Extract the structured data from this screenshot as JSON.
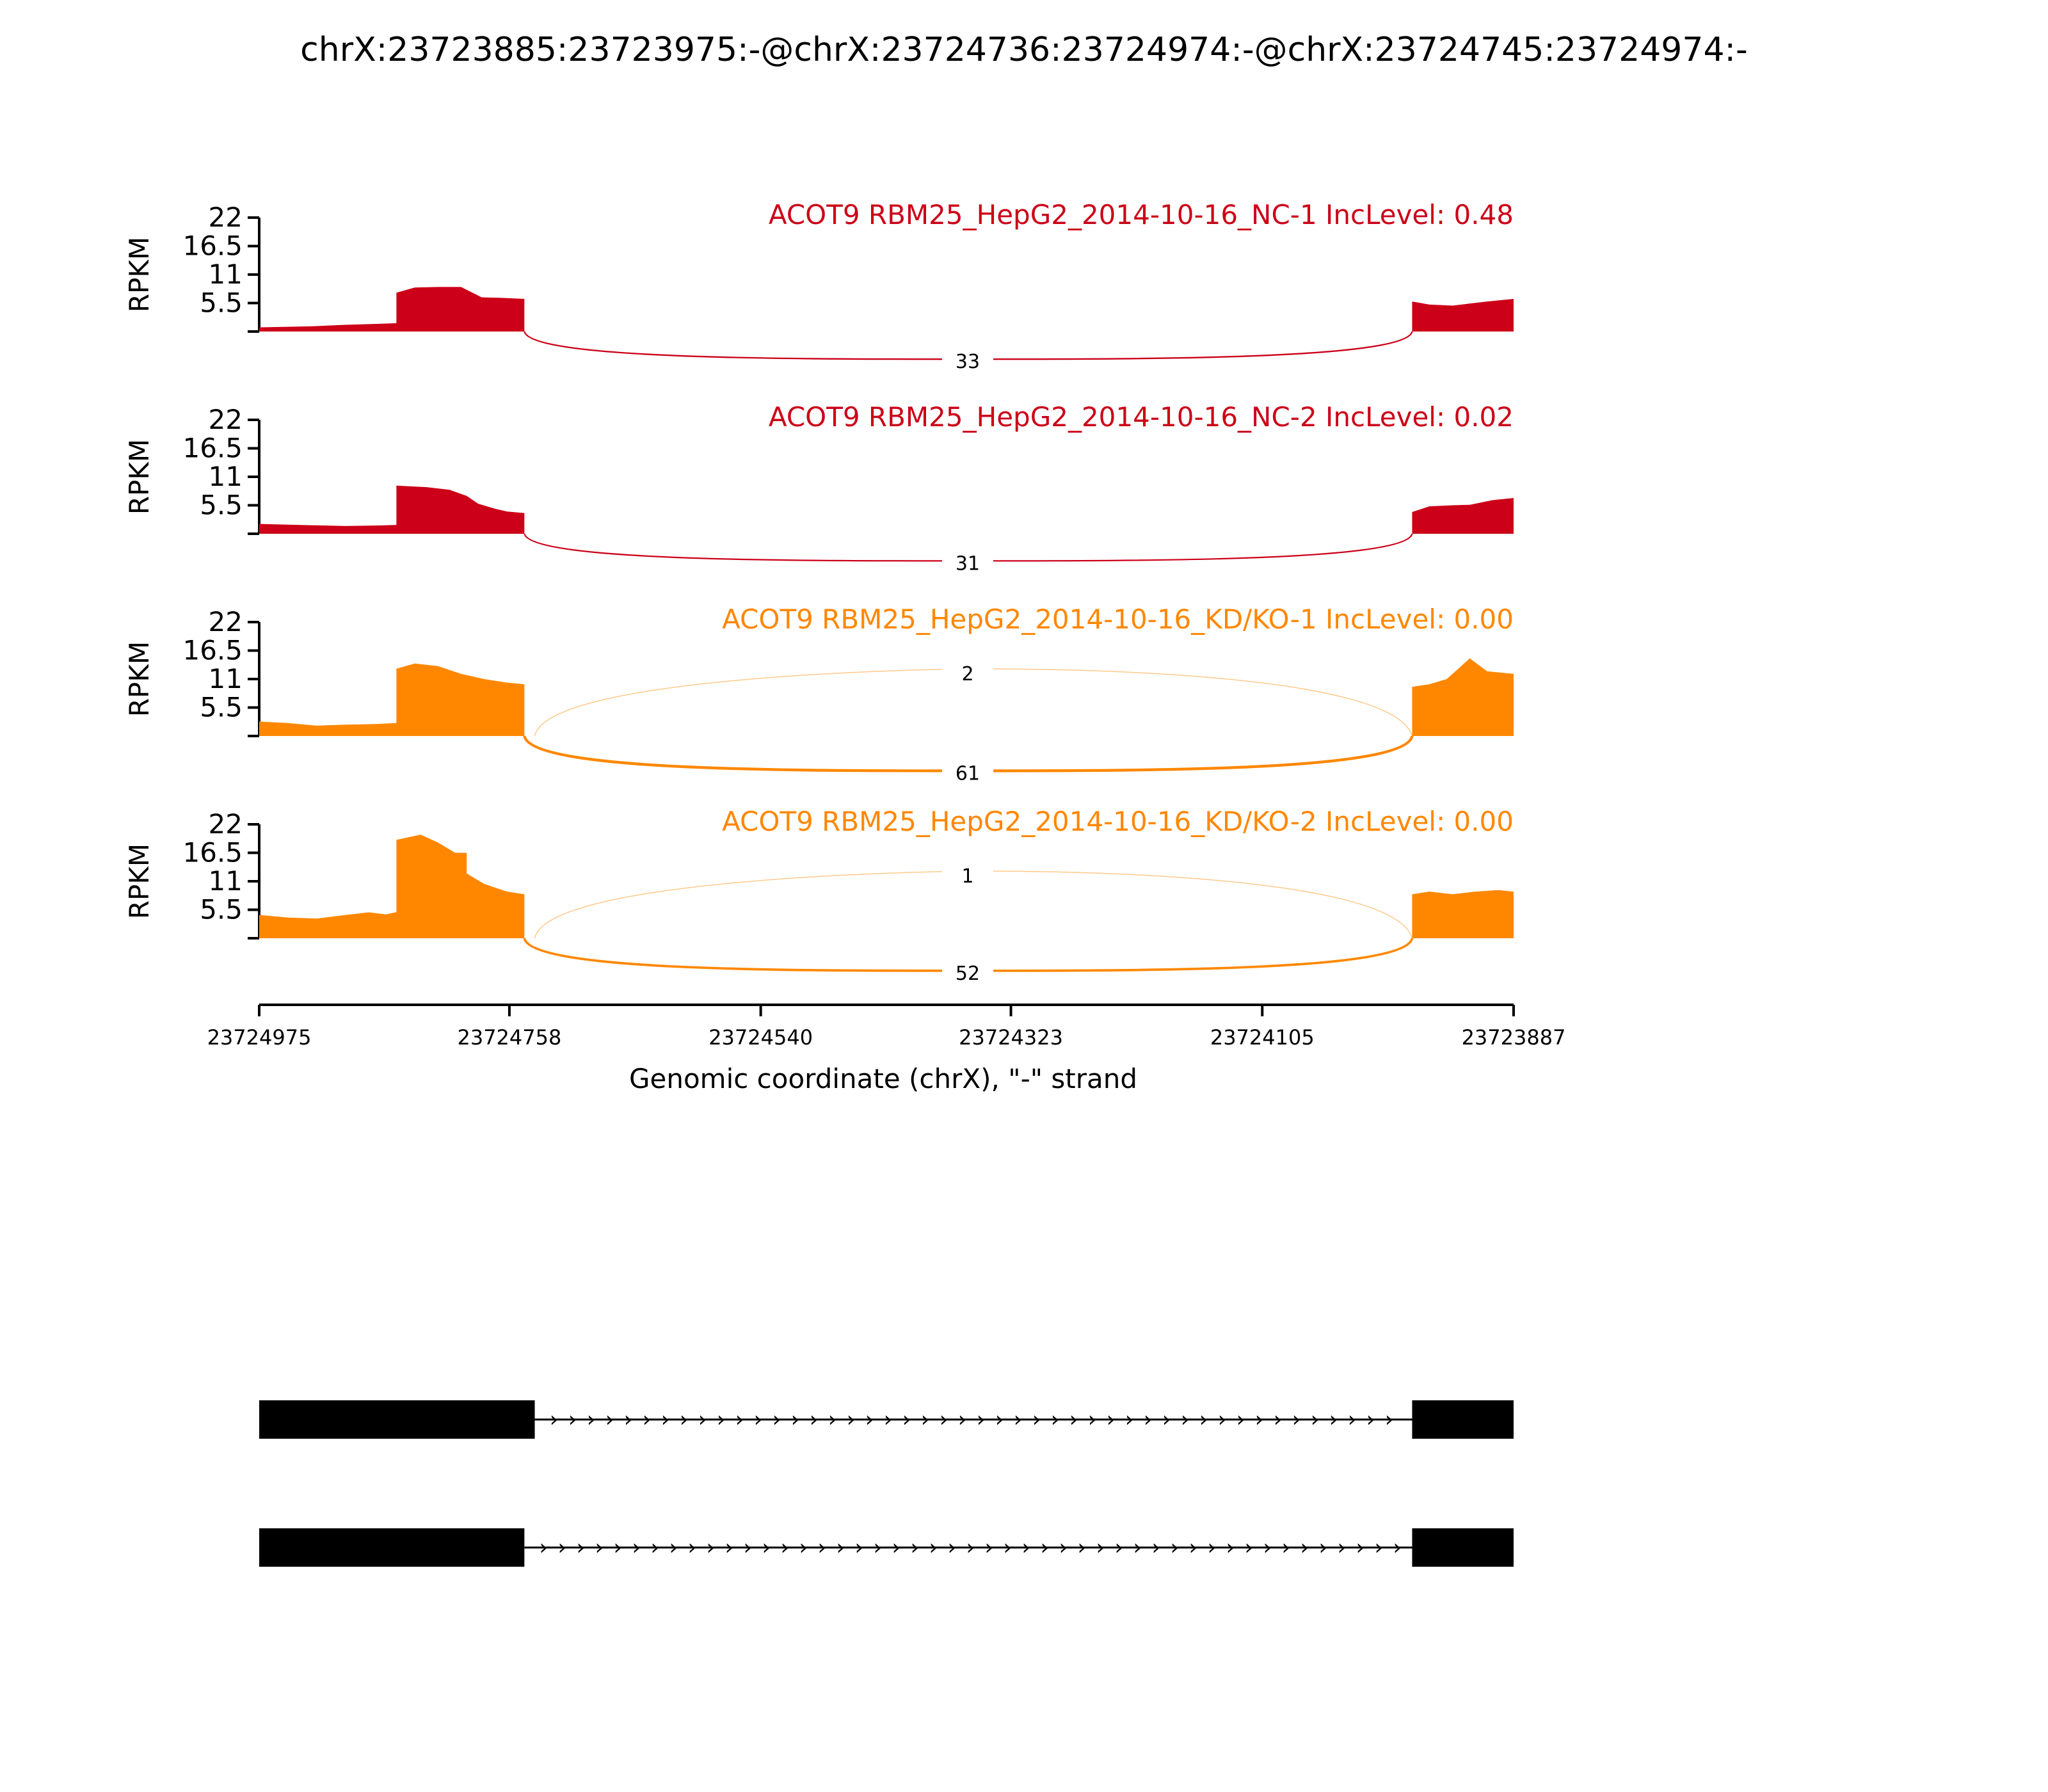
{
  "chart_data": {
    "type": "area",
    "title": "chrX:23723885:23723975:-@chrX:23724736:23724974:-@chrX:23724745:23724974:-",
    "ylabel": "RPKM",
    "xlabel": "Genomic coordinate (chrX), \"-\" strand",
    "yticks": [
      "22",
      "16.5",
      "11",
      "5.5"
    ],
    "ylim": [
      0,
      22
    ],
    "xlim": [
      23724975,
      23723887
    ],
    "xticks": [
      {
        "value": 23724975,
        "label": "23724975"
      },
      {
        "value": 23724758,
        "label": "23724758"
      },
      {
        "value": 23724540,
        "label": "23724540"
      },
      {
        "value": 23724323,
        "label": "23724323"
      },
      {
        "value": 23724105,
        "label": "23724105"
      },
      {
        "value": 23723887,
        "label": "23723887"
      }
    ],
    "grid": false,
    "series": [
      {
        "name": "ACOT9 RBM25_HepG2_2014-10-16_NC-1 IncLevel: 0.48",
        "color": "#cc0018",
        "coverage": [
          {
            "x": 23724975,
            "y": 0.8
          },
          {
            "x": 23724930,
            "y": 1.0
          },
          {
            "x": 23724900,
            "y": 1.3
          },
          {
            "x": 23724870,
            "y": 1.5
          },
          {
            "x": 23724857,
            "y": 1.6
          },
          {
            "x": 23724856,
            "y": 7.5
          },
          {
            "x": 23724840,
            "y": 8.5
          },
          {
            "x": 23724820,
            "y": 8.6
          },
          {
            "x": 23724800,
            "y": 8.6
          },
          {
            "x": 23724790,
            "y": 7.5
          },
          {
            "x": 23724782,
            "y": 6.6
          },
          {
            "x": 23724765,
            "y": 6.5
          },
          {
            "x": 23724745,
            "y": 6.3
          },
          {
            "x": 23723975,
            "y": 5.8
          },
          {
            "x": 23723960,
            "y": 5.2
          },
          {
            "x": 23723940,
            "y": 5.0
          },
          {
            "x": 23723925,
            "y": 5.4
          },
          {
            "x": 23723910,
            "y": 5.8
          },
          {
            "x": 23723887,
            "y": 6.3
          }
        ],
        "junctions": [
          {
            "from": 23724745,
            "to": 23723975,
            "count": 33,
            "side": "below"
          }
        ]
      },
      {
        "name": "ACOT9 RBM25_HepG2_2014-10-16_NC-2 IncLevel: 0.02",
        "color": "#cc0018",
        "coverage": [
          {
            "x": 23724975,
            "y": 1.9
          },
          {
            "x": 23724940,
            "y": 1.7
          },
          {
            "x": 23724900,
            "y": 1.5
          },
          {
            "x": 23724870,
            "y": 1.6
          },
          {
            "x": 23724857,
            "y": 1.7
          },
          {
            "x": 23724856,
            "y": 9.3
          },
          {
            "x": 23724830,
            "y": 9.0
          },
          {
            "x": 23724810,
            "y": 8.5
          },
          {
            "x": 23724795,
            "y": 7.3
          },
          {
            "x": 23724785,
            "y": 5.8
          },
          {
            "x": 23724770,
            "y": 4.8
          },
          {
            "x": 23724760,
            "y": 4.3
          },
          {
            "x": 23724745,
            "y": 4.0
          },
          {
            "x": 23723975,
            "y": 4.2
          },
          {
            "x": 23723960,
            "y": 5.3
          },
          {
            "x": 23723940,
            "y": 5.5
          },
          {
            "x": 23723925,
            "y": 5.6
          },
          {
            "x": 23723905,
            "y": 6.5
          },
          {
            "x": 23723887,
            "y": 6.9
          }
        ],
        "junctions": [
          {
            "from": 23724745,
            "to": 23723975,
            "count": 31,
            "side": "below"
          }
        ]
      },
      {
        "name": "ACOT9 RBM25_HepG2_2014-10-16_KD/KO-1 IncLevel: 0.00",
        "color": "#ff8700",
        "coverage": [
          {
            "x": 23724975,
            "y": 2.8
          },
          {
            "x": 23724950,
            "y": 2.5
          },
          {
            "x": 23724925,
            "y": 2.0
          },
          {
            "x": 23724900,
            "y": 2.2
          },
          {
            "x": 23724875,
            "y": 2.3
          },
          {
            "x": 23724857,
            "y": 2.5
          },
          {
            "x": 23724856,
            "y": 13.0
          },
          {
            "x": 23724840,
            "y": 14.0
          },
          {
            "x": 23724820,
            "y": 13.5
          },
          {
            "x": 23724800,
            "y": 12.0
          },
          {
            "x": 23724780,
            "y": 11.0
          },
          {
            "x": 23724760,
            "y": 10.3
          },
          {
            "x": 23724745,
            "y": 10.0
          },
          {
            "x": 23723975,
            "y": 9.5
          },
          {
            "x": 23723960,
            "y": 10.0
          },
          {
            "x": 23723945,
            "y": 11.0
          },
          {
            "x": 23723935,
            "y": 13.0
          },
          {
            "x": 23723925,
            "y": 15.0
          },
          {
            "x": 23723910,
            "y": 12.5
          },
          {
            "x": 23723887,
            "y": 12.0
          }
        ],
        "junctions": [
          {
            "from": 23724736,
            "to": 23723975,
            "count": 2,
            "side": "above"
          },
          {
            "from": 23724745,
            "to": 23723975,
            "count": 61,
            "side": "below"
          }
        ]
      },
      {
        "name": "ACOT9 RBM25_HepG2_2014-10-16_KD/KO-2 IncLevel: 0.00",
        "color": "#ff8700",
        "coverage": [
          {
            "x": 23724975,
            "y": 4.5
          },
          {
            "x": 23724950,
            "y": 4.0
          },
          {
            "x": 23724925,
            "y": 3.8
          },
          {
            "x": 23724900,
            "y": 4.5
          },
          {
            "x": 23724880,
            "y": 5.0
          },
          {
            "x": 23724865,
            "y": 4.6
          },
          {
            "x": 23724857,
            "y": 5.0
          },
          {
            "x": 23724856,
            "y": 19.0
          },
          {
            "x": 23724835,
            "y": 20.0
          },
          {
            "x": 23724820,
            "y": 18.5
          },
          {
            "x": 23724805,
            "y": 16.5
          },
          {
            "x": 23724795,
            "y": 12.5
          },
          {
            "x": 23724780,
            "y": 10.5
          },
          {
            "x": 23724760,
            "y": 9.0
          },
          {
            "x": 23724745,
            "y": 8.5
          },
          {
            "x": 23723975,
            "y": 8.5
          },
          {
            "x": 23723960,
            "y": 9.0
          },
          {
            "x": 23723940,
            "y": 8.5
          },
          {
            "x": 23723920,
            "y": 9.0
          },
          {
            "x": 23723900,
            "y": 9.3
          },
          {
            "x": 23723887,
            "y": 9.0
          }
        ],
        "junctions": [
          {
            "from": 23724736,
            "to": 23723975,
            "count": 1,
            "side": "above"
          },
          {
            "from": 23724745,
            "to": 23723975,
            "count": 52,
            "side": "below"
          }
        ]
      }
    ],
    "gene_models": [
      {
        "exons": [
          [
            23724975,
            23724736
          ],
          [
            23723975,
            23723887
          ]
        ],
        "intron_arrow": "›"
      },
      {
        "exons": [
          [
            23724975,
            23724745
          ],
          [
            23723975,
            23723887
          ]
        ],
        "intron_arrow": "›"
      }
    ]
  }
}
